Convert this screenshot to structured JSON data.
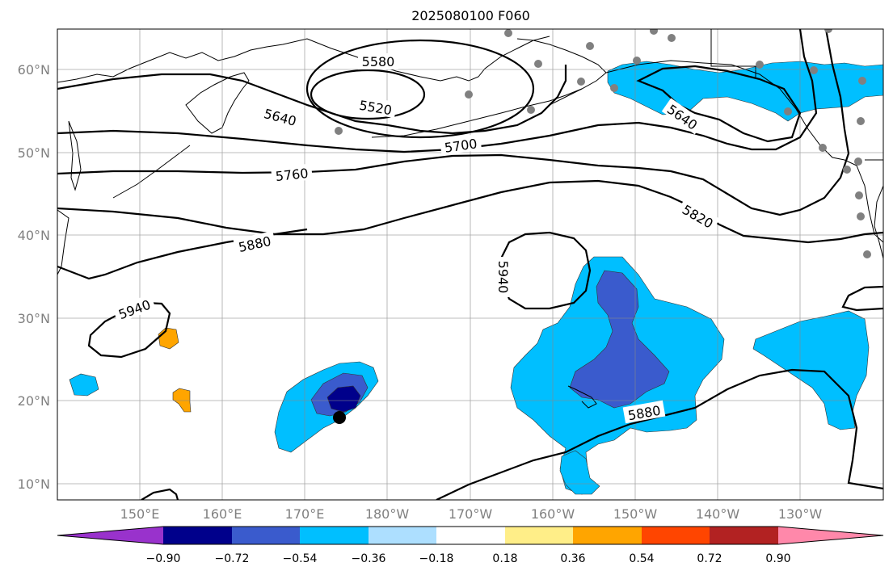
{
  "title": "2025080100 F060",
  "lat_labels": [
    "60°N",
    "50°N",
    "40°N",
    "30°N",
    "20°N",
    "10°N"
  ],
  "lon_labels": [
    "150°E",
    "160°E",
    "170°E",
    "180°W",
    "170°W",
    "160°W",
    "150°W",
    "140°W",
    "130°W"
  ],
  "contour_labels": [
    "5520",
    "5580",
    "5640",
    "5640",
    "5700",
    "5760",
    "5820",
    "5880",
    "5880",
    "5940",
    "5940"
  ],
  "colorbar": {
    "ticks": [
      "−0.90",
      "−0.72",
      "−0.54",
      "−0.36",
      "−0.18",
      "0.18",
      "0.36",
      "0.54",
      "0.72",
      "0.90"
    ],
    "colors": [
      "#9932CC",
      "#00008B",
      "#3A5BCD",
      "#00BFFF",
      "#ADDFFF",
      "#FFFFFF",
      "#FFEE88",
      "#FFA500",
      "#FF4500",
      "#B22222",
      "#FF88AA"
    ]
  },
  "colors": {
    "strong_negative": "#3A5BCD",
    "negative": "#00BFFF",
    "deep_negative": "#00008B",
    "positive": "#FFA500",
    "station_marker": "#808080",
    "storm_marker": "#000000"
  }
}
